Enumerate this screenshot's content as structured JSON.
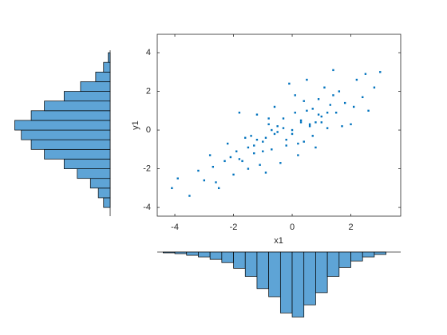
{
  "chart_data": [
    {
      "type": "scatter",
      "xlabel": "x1",
      "ylabel": "y1",
      "color": "#0072bd",
      "xlim": [
        -4.6,
        3.7
      ],
      "ylim": [
        -4.45,
        4.95
      ],
      "xticks": [
        -4,
        -2,
        0,
        2
      ],
      "yticks": [
        -4,
        -2,
        0,
        2,
        4
      ],
      "x": [
        -4.1,
        -3.9,
        -3.5,
        -3.2,
        -3.0,
        -2.8,
        -2.6,
        -2.5,
        -2.3,
        -2.2,
        -2.0,
        -1.9,
        -1.8,
        -1.7,
        -1.6,
        -1.5,
        -1.4,
        -1.3,
        -1.2,
        -1.1,
        -1.0,
        -0.9,
        -0.8,
        -0.7,
        -0.6,
        -0.5,
        -0.4,
        -0.3,
        -0.2,
        -0.1,
        0.0,
        0.1,
        0.2,
        0.3,
        0.4,
        0.5,
        0.6,
        0.7,
        0.8,
        0.9,
        1.0,
        1.1,
        1.2,
        1.3,
        1.4,
        1.5,
        1.6,
        1.8,
        2.0,
        2.2,
        2.4,
        2.6,
        2.8,
        3.0,
        -1.5,
        -1.2,
        -0.9,
        -0.6,
        -0.3,
        0.0,
        0.3,
        0.6,
        0.9,
        1.2,
        -1.0,
        -0.5,
        0.2,
        0.5,
        1.0,
        -2.1,
        -1.3,
        -0.8,
        0.1,
        0.7,
        1.4,
        2.1,
        -0.2,
        0.4,
        -0.7,
        1.7,
        -1.8,
        2.5,
        -2.7,
        0.8
      ],
      "y": [
        -3.0,
        -2.5,
        -3.4,
        -2.1,
        -2.6,
        -1.3,
        -2.7,
        -3.0,
        -1.6,
        -0.7,
        -2.3,
        -1.1,
        0.9,
        -1.6,
        -0.4,
        -2.0,
        -0.3,
        -1.2,
        0.8,
        -1.8,
        -0.6,
        -2.2,
        0.3,
        -1.0,
        1.2,
        -0.1,
        -1.7,
        0.6,
        -0.5,
        2.4,
        -0.2,
        1.8,
        -1.3,
        0.5,
        -0.6,
        2.6,
        0.2,
        1.1,
        -0.9,
        1.6,
        0.7,
        2.2,
        0.1,
        1.3,
        3.1,
        0.9,
        2.0,
        1.4,
        0.3,
        2.6,
        1.7,
        1.0,
        2.2,
        3.0,
        -0.9,
        -0.5,
        -0.4,
        -0.2,
        0.1,
        0.0,
        0.4,
        0.3,
        0.8,
        0.9,
        -1.1,
        0.2,
        -0.7,
        1.0,
        0.4,
        -1.4,
        -0.8,
        0.6,
        0.9,
        -0.3,
        1.8,
        1.2,
        -0.8,
        1.5,
        0.0,
        0.2,
        -1.5,
        2.9,
        -1.9,
        0.4
      ]
    },
    {
      "type": "histogram",
      "color": "#5ea4d6",
      "ylim": [
        0,
        165
      ],
      "bins": [
        -4.4,
        -4.0,
        -3.6,
        -3.2,
        -2.8,
        -2.4,
        -2.0,
        -1.6,
        -1.2,
        -0.8,
        -0.4,
        0.0,
        0.4,
        0.8,
        1.2,
        1.6,
        2.0,
        2.4,
        2.8,
        3.2
      ],
      "counts": [
        2,
        4,
        8,
        12,
        18,
        26,
        40,
        60,
        90,
        110,
        150,
        160,
        130,
        100,
        60,
        38,
        22,
        12,
        6
      ]
    },
    {
      "type": "histogram",
      "color": "#5ea4d6",
      "ylim": [
        0,
        148
      ],
      "bins": [
        -4.0,
        -3.5,
        -3.0,
        -2.5,
        -2.0,
        -1.5,
        -1.0,
        -0.5,
        0.0,
        0.5,
        1.0,
        1.5,
        2.0,
        2.5,
        3.0,
        3.5,
        4.0
      ],
      "counts": [
        10,
        18,
        30,
        50,
        70,
        100,
        120,
        135,
        145,
        120,
        100,
        70,
        45,
        22,
        10,
        3
      ]
    }
  ]
}
